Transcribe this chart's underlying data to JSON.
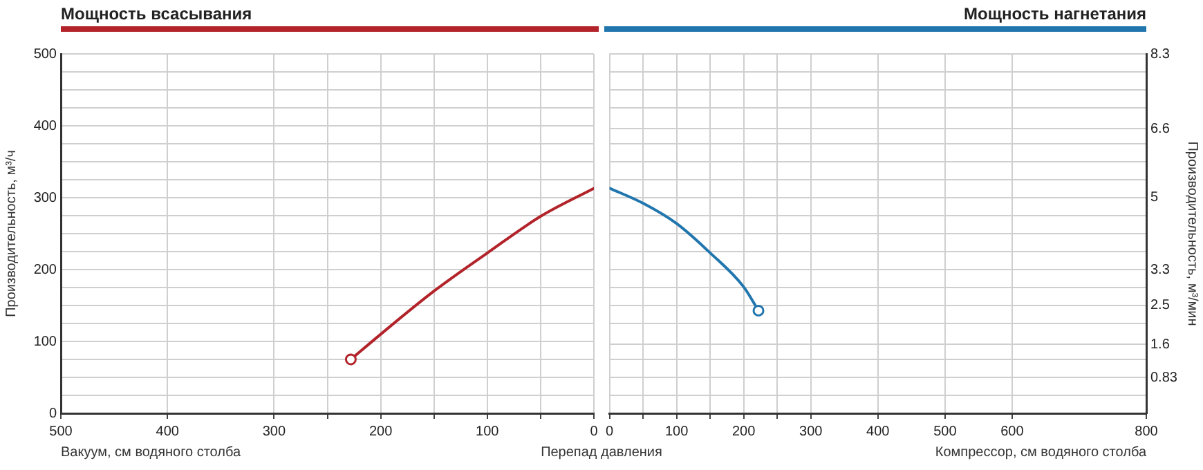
{
  "chart_data": [
    {
      "type": "line",
      "title": "Мощность всасывания",
      "xlabel": "Вакуум, см водяного столба",
      "ylabel": "Производительность, м³/ч",
      "annotations": [
        "Перепад давления"
      ],
      "xlim": [
        500,
        0
      ],
      "xticks": [
        0,
        {
          "value": 50,
          "label": null
        },
        100,
        {
          "value": 150,
          "label": null
        },
        200,
        {
          "value": 250,
          "label": null
        },
        300,
        400,
        500
      ],
      "ylim": [
        0,
        500
      ],
      "yticks": [
        0,
        {
          "value": 25,
          "label": null
        },
        {
          "value": 50,
          "label": null
        },
        {
          "value": 75,
          "label": null
        },
        100,
        {
          "value": 125,
          "label": null
        },
        {
          "value": 150,
          "label": null
        },
        {
          "value": 175,
          "label": null
        },
        200,
        {
          "value": 225,
          "label": null
        },
        {
          "value": 250,
          "label": null
        },
        {
          "value": 275,
          "label": null
        },
        300,
        {
          "value": 325,
          "label": null
        },
        {
          "value": 350,
          "label": null
        },
        {
          "value": 375,
          "label": null
        },
        400,
        {
          "value": 425,
          "label": null
        },
        {
          "value": 450,
          "label": null
        },
        {
          "value": 475,
          "label": null
        },
        500
      ],
      "grid": true,
      "legend": false,
      "series": [
        {
          "color": "#b2232a",
          "x": [
            228,
            200,
            150,
            100,
            50,
            0
          ],
          "values": [
            75,
            110,
            170,
            223,
            274,
            313
          ],
          "marker": "none"
        },
        {
          "type": "scatter",
          "color": "#b2232a",
          "x": [
            228
          ],
          "values": [
            75
          ],
          "marker": "circle"
        }
      ]
    },
    {
      "type": "line",
      "title": "Мощность нагнетания",
      "xlabel": "Компрессор, см водяного столба",
      "y2label": "Производительность, м³/мин",
      "xlim": [
        0,
        800
      ],
      "xticks": [
        0,
        {
          "value": 50,
          "label": null
        },
        100,
        {
          "value": 150,
          "label": null
        },
        200,
        {
          "value": 250,
          "label": null
        },
        300,
        400,
        500,
        600,
        800
      ],
      "y2lim": [
        0,
        8.333
      ],
      "y2ticks": [
        {
          "value": 0,
          "label": null
        },
        {
          "value": 0.417,
          "label": null
        },
        {
          "value": 0.833,
          "label": "0.83"
        },
        {
          "value": 1.25,
          "label": null
        },
        1.6,
        {
          "value": 2.083,
          "label": null
        },
        2.5,
        {
          "value": 2.917,
          "label": null
        },
        {
          "value": 3.333,
          "label": "3.3"
        },
        {
          "value": 3.75,
          "label": null
        },
        {
          "value": 4.167,
          "label": null
        },
        {
          "value": 4.583,
          "label": null
        },
        5,
        {
          "value": 5.417,
          "label": null
        },
        {
          "value": 5.833,
          "label": null
        },
        {
          "value": 6.25,
          "label": null
        },
        6.6,
        {
          "value": 7.083,
          "label": null
        },
        {
          "value": 7.5,
          "label": null
        },
        {
          "value": 7.917,
          "label": null
        },
        {
          "value": 8.333,
          "label": "8.3"
        }
      ],
      "grid": true,
      "legend": false,
      "series": [
        {
          "color": "#2176ae",
          "axis": "y2",
          "x": [
            0,
            50,
            100,
            150,
            200,
            222
          ],
          "values": [
            5.22,
            4.87,
            4.4,
            3.72,
            2.93,
            2.38
          ],
          "marker": "none"
        },
        {
          "type": "scatter",
          "color": "#2176ae",
          "axis": "y2",
          "x": [
            222
          ],
          "values": [
            2.38
          ],
          "marker": "circle"
        }
      ]
    }
  ]
}
